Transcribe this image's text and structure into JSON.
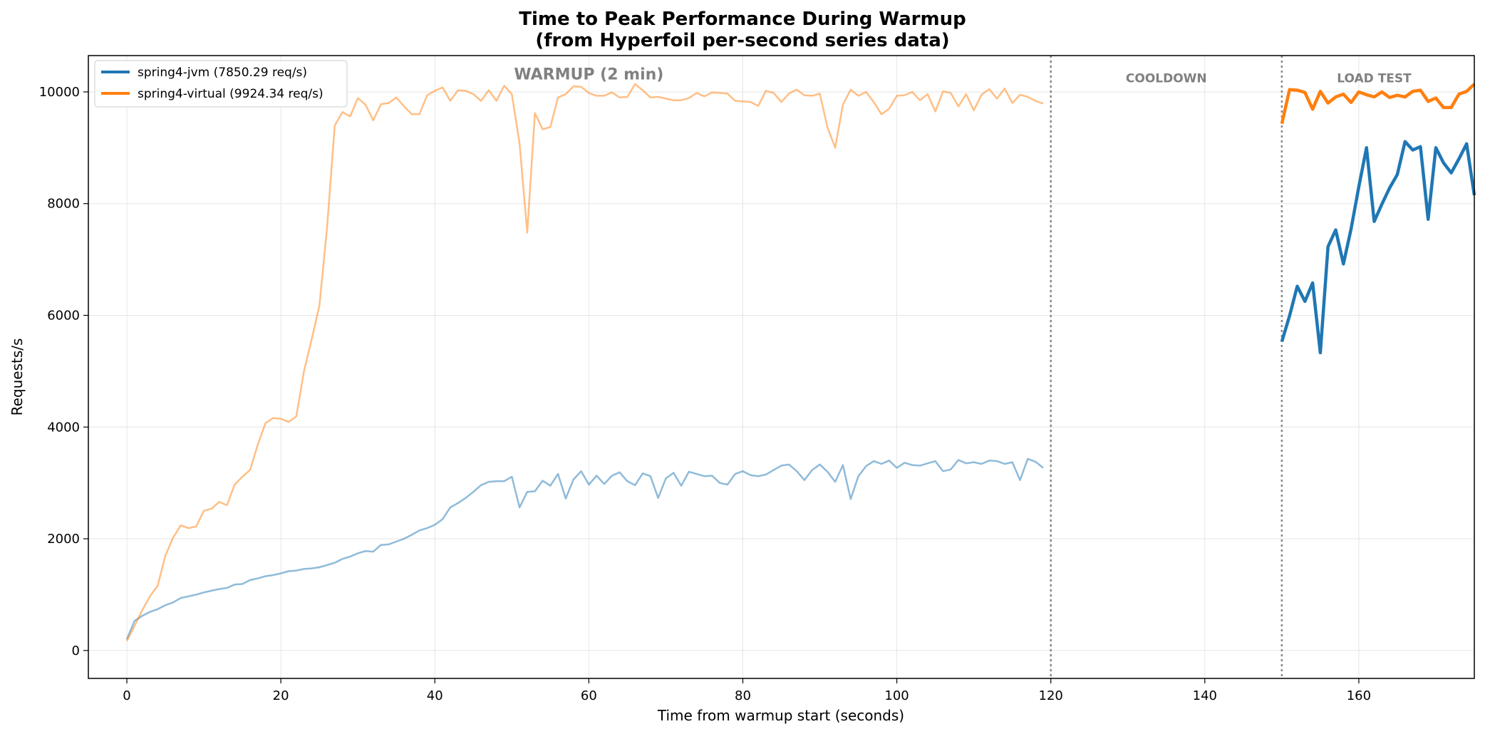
{
  "chart_data": {
    "type": "line",
    "title": "Time to Peak Performance During Warmup",
    "subtitle": "(from Hyperfoil per-second series data)",
    "xlabel": "Time from warmup start (seconds)",
    "ylabel": "Requests/s",
    "xlim": [
      -5,
      175
    ],
    "ylim": [
      -500,
      10650
    ],
    "xticks": [
      0,
      20,
      40,
      60,
      80,
      100,
      120,
      140,
      160
    ],
    "yticks": [
      0,
      2000,
      4000,
      6000,
      8000,
      10000
    ],
    "grid": true,
    "legend_position": "top-left",
    "phase_boundaries": [
      120,
      150
    ],
    "phase_labels": [
      {
        "text": "WARMUP (2 min)",
        "x": 60,
        "y": 10220,
        "size": "large"
      },
      {
        "text": "COOLDOWN",
        "x": 135,
        "y": 10170,
        "size": "small"
      },
      {
        "text": "LOAD TEST",
        "x": 162,
        "y": 10170,
        "size": "small"
      }
    ],
    "series": [
      {
        "name": "spring4-jvm (7850.29 req/s)",
        "color": "#1f77b4",
        "warmup": {
          "x": [
            0,
            1,
            2,
            3,
            4,
            5,
            6,
            7,
            8,
            9,
            10,
            11,
            12,
            13,
            14,
            15,
            16,
            17,
            18,
            19,
            20,
            21,
            22,
            23,
            24,
            25,
            26,
            27,
            28,
            29,
            30,
            31,
            32,
            33,
            34,
            35,
            36,
            37,
            38,
            39,
            40,
            41,
            42,
            43,
            44,
            45,
            46,
            47,
            48,
            49,
            50,
            51,
            52,
            53,
            54,
            55,
            56,
            57,
            58,
            59,
            60,
            61,
            62,
            63,
            64,
            65,
            66,
            67,
            68,
            69,
            70,
            71,
            72,
            73,
            74,
            75,
            76,
            77,
            78,
            79,
            80,
            81,
            82,
            83,
            84,
            85,
            86,
            87,
            88,
            89,
            90,
            91,
            92,
            93,
            94,
            95,
            96,
            97,
            98,
            99,
            100,
            101,
            102,
            103,
            104,
            105,
            106,
            107,
            108,
            109,
            110,
            111,
            112,
            113,
            114,
            115,
            116,
            117,
            118,
            119
          ],
          "y": [
            200,
            530,
            620,
            690,
            740,
            810,
            860,
            940,
            970,
            1000,
            1040,
            1070,
            1100,
            1120,
            1180,
            1190,
            1260,
            1290,
            1330,
            1350,
            1380,
            1420,
            1430,
            1460,
            1470,
            1490,
            1530,
            1570,
            1640,
            1680,
            1740,
            1780,
            1770,
            1890,
            1900,
            1950,
            2000,
            2070,
            2150,
            2190,
            2250,
            2350,
            2560,
            2640,
            2730,
            2840,
            2960,
            3020,
            3030,
            3030,
            3110,
            2560,
            2840,
            2850,
            3040,
            2950,
            3160,
            2720,
            3060,
            3210,
            2970,
            3130,
            2980,
            3130,
            3190,
            3030,
            2960,
            3170,
            3120,
            2730,
            3080,
            3180,
            2950,
            3200,
            3160,
            3120,
            3130,
            3000,
            2970,
            3160,
            3210,
            3140,
            3120,
            3150,
            3230,
            3310,
            3330,
            3210,
            3050,
            3230,
            3330,
            3200,
            3020,
            3320,
            2710,
            3120,
            3300,
            3390,
            3340,
            3400,
            3270,
            3360,
            3320,
            3310,
            3350,
            3390,
            3210,
            3240,
            3410,
            3350,
            3370,
            3340,
            3400,
            3390,
            3340,
            3370,
            3050,
            3430,
            3380,
            3270
          ]
        },
        "load_test": {
          "x": [
            150,
            151,
            152,
            153,
            154,
            155,
            156,
            157,
            158,
            159,
            160,
            161,
            162,
            163,
            164,
            165,
            166,
            167,
            168,
            169,
            170,
            171,
            172,
            173,
            174,
            175
          ],
          "y": [
            5530,
            5990,
            6520,
            6250,
            6580,
            5330,
            7230,
            7530,
            6920,
            7550,
            8300,
            9000,
            7680,
            7990,
            8280,
            8520,
            9110,
            8960,
            9020,
            7720,
            9000,
            8730,
            8550,
            8800,
            9070,
            8150
          ]
        }
      },
      {
        "name": "spring4-virtual (9924.34 req/s)",
        "color": "#ff7f0e",
        "warmup": {
          "x": [
            0,
            1,
            2,
            3,
            4,
            5,
            6,
            7,
            8,
            9,
            10,
            11,
            12,
            13,
            14,
            15,
            16,
            17,
            18,
            19,
            20,
            21,
            22,
            23,
            24,
            25,
            26,
            27,
            28,
            29,
            30,
            31,
            32,
            33,
            34,
            35,
            36,
            37,
            38,
            39,
            40,
            41,
            42,
            43,
            44,
            45,
            46,
            47,
            48,
            49,
            50,
            51,
            52,
            53,
            54,
            55,
            56,
            57,
            58,
            59,
            60,
            61,
            62,
            63,
            64,
            65,
            66,
            67,
            68,
            69,
            70,
            71,
            72,
            73,
            74,
            75,
            76,
            77,
            78,
            79,
            80,
            81,
            82,
            83,
            84,
            85,
            86,
            87,
            88,
            89,
            90,
            91,
            92,
            93,
            94,
            95,
            96,
            97,
            98,
            99,
            100,
            101,
            102,
            103,
            104,
            105,
            106,
            107,
            108,
            109,
            110,
            111,
            112,
            113,
            114,
            115,
            116,
            117,
            118,
            119
          ],
          "y": [
            170,
            440,
            720,
            970,
            1160,
            1700,
            2020,
            2240,
            2190,
            2220,
            2500,
            2540,
            2660,
            2600,
            2970,
            3110,
            3230,
            3680,
            4070,
            4160,
            4150,
            4090,
            4190,
            5000,
            5570,
            6170,
            7570,
            9400,
            9640,
            9560,
            9890,
            9770,
            9490,
            9780,
            9800,
            9900,
            9740,
            9600,
            9600,
            9940,
            10020,
            10080,
            9840,
            10030,
            10020,
            9960,
            9840,
            10030,
            9840,
            10110,
            9960,
            9080,
            7480,
            9620,
            9330,
            9370,
            9900,
            9960,
            10100,
            10090,
            9980,
            9930,
            9930,
            9990,
            9900,
            9910,
            10140,
            10030,
            9900,
            9910,
            9880,
            9850,
            9850,
            9890,
            9980,
            9920,
            9990,
            9980,
            9970,
            9840,
            9830,
            9820,
            9750,
            10020,
            9980,
            9820,
            9970,
            10040,
            9940,
            9930,
            9970,
            9360,
            9000,
            9770,
            10040,
            9930,
            10000,
            9820,
            9600,
            9700,
            9930,
            9940,
            10000,
            9850,
            9960,
            9650,
            10010,
            9980,
            9740,
            9960,
            9670,
            9950,
            10050,
            9880,
            10060,
            9800,
            9950,
            9910,
            9840,
            9790
          ]
        },
        "load_test": {
          "x": [
            150,
            151,
            152,
            153,
            154,
            155,
            156,
            157,
            158,
            159,
            160,
            161,
            162,
            163,
            164,
            165,
            166,
            167,
            168,
            169,
            170,
            171,
            172,
            173,
            174,
            175
          ],
          "y": [
            9430,
            10040,
            10030,
            9990,
            9690,
            10010,
            9800,
            9910,
            9960,
            9810,
            10000,
            9950,
            9910,
            10000,
            9900,
            9940,
            9910,
            10010,
            10030,
            9830,
            9890,
            9720,
            9720,
            9960,
            10010,
            10140
          ]
        }
      }
    ]
  }
}
